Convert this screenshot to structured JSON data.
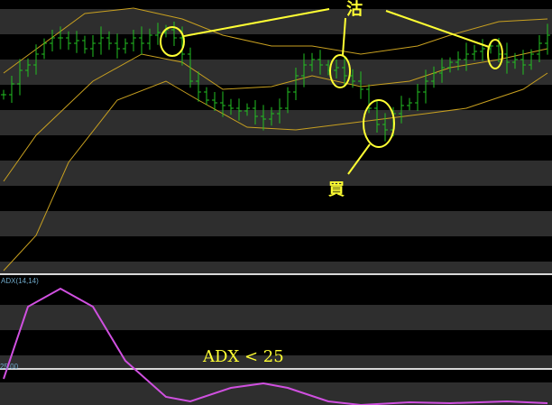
{
  "colors": {
    "stripe": "#2e2e2e",
    "candle": "#22c022",
    "band": "#c8a020",
    "adx": "#d050e0",
    "annotation": "#ffff33",
    "separator": "#d8d8d8"
  },
  "adx_panel": {
    "label": "ADX(14,14)",
    "threshold_label": "25.00"
  },
  "annotations": {
    "sell": "沽",
    "buy": "買",
    "adx_note": "ADX < 25"
  },
  "chart_data": [
    {
      "type": "line",
      "title": "",
      "x_unit": "bar index",
      "grid": false,
      "closes": [
        65,
        69,
        74,
        76,
        80,
        84,
        86,
        86,
        84,
        85,
        82,
        84,
        86,
        84,
        82,
        84,
        86,
        84,
        87,
        88,
        89,
        86,
        80,
        70,
        66,
        63,
        62,
        61,
        60,
        59,
        60,
        57,
        56,
        58,
        60,
        66,
        72,
        76,
        78,
        76,
        74,
        75,
        72,
        70,
        67,
        60,
        54,
        52,
        58,
        61,
        62,
        66,
        70,
        73,
        75,
        77,
        78,
        80,
        81,
        82,
        83,
        80,
        77,
        78,
        76,
        80,
        84,
        87
      ],
      "upper_band": [
        [
          0,
          73
        ],
        [
          10,
          95
        ],
        [
          16,
          97
        ],
        [
          22,
          93
        ],
        [
          27,
          87
        ],
        [
          33,
          83
        ],
        [
          38,
          83
        ],
        [
          44,
          80
        ],
        [
          51,
          83
        ],
        [
          55,
          87
        ],
        [
          61,
          92
        ],
        [
          67,
          93
        ]
      ],
      "middle_band": [
        [
          0,
          33
        ],
        [
          4,
          50
        ],
        [
          11,
          70
        ],
        [
          17,
          80
        ],
        [
          22,
          77
        ],
        [
          27,
          67
        ],
        [
          33,
          68
        ],
        [
          38,
          72
        ],
        [
          44,
          68
        ],
        [
          50,
          70
        ],
        [
          55,
          75
        ],
        [
          61,
          78
        ],
        [
          67,
          82
        ]
      ],
      "lower_band": [
        [
          0,
          0
        ],
        [
          4,
          13
        ],
        [
          8,
          40
        ],
        [
          14,
          63
        ],
        [
          20,
          70
        ],
        [
          24,
          63
        ],
        [
          30,
          53
        ],
        [
          36,
          52
        ],
        [
          44,
          55
        ],
        [
          52,
          58
        ],
        [
          57,
          60
        ],
        [
          64,
          67
        ],
        [
          67,
          73
        ]
      ],
      "ylim": [
        0,
        100
      ]
    },
    {
      "type": "line",
      "title": "ADX(14,14)",
      "reference_line": 25,
      "series": [
        {
          "points": [
            [
              0,
              22.8
            ],
            [
              3,
              38.8
            ],
            [
              7,
              42.8
            ],
            [
              11,
              38.8
            ],
            [
              15,
              26.8
            ],
            [
              20,
              18.8
            ],
            [
              23,
              17.8
            ],
            [
              28,
              20.8
            ],
            [
              32,
              21.8
            ],
            [
              35,
              20.8
            ],
            [
              40,
              17.8
            ],
            [
              44,
              17
            ],
            [
              50,
              17.6
            ],
            [
              55,
              17.4
            ],
            [
              62,
              17.8
            ],
            [
              67,
              17.4
            ]
          ]
        }
      ],
      "ylim": [
        17,
        45
      ]
    }
  ]
}
